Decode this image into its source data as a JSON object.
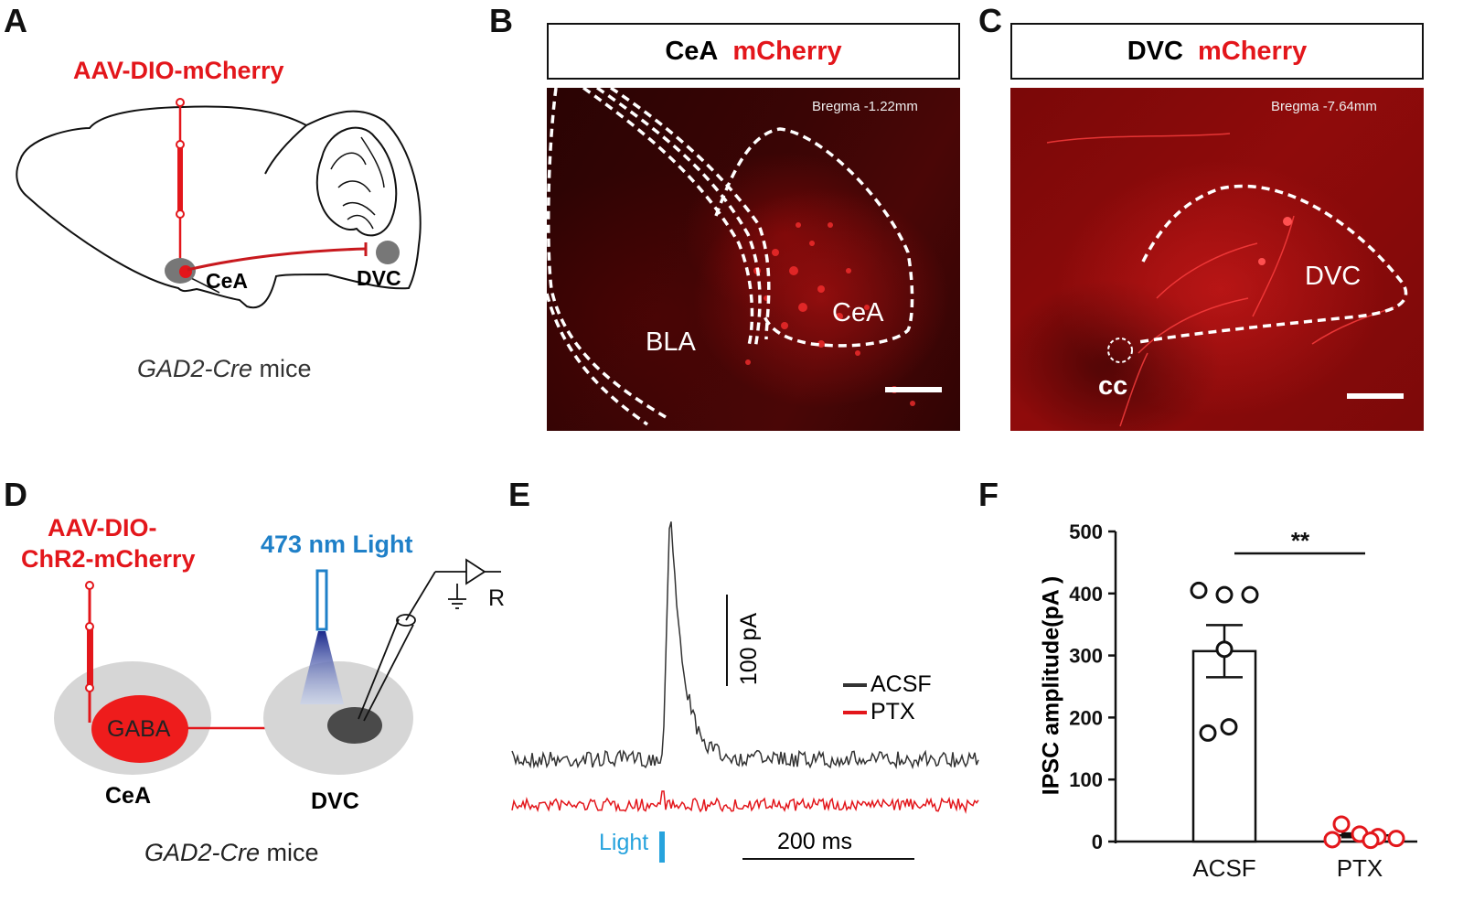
{
  "panels": {
    "A": {
      "label": "A",
      "virus": "AAV-DIO-mCherry",
      "region_source": "CeA",
      "region_target": "DVC",
      "mouse_line": "GAD2-Cre",
      "mouse_suffix": "mice"
    },
    "B": {
      "label": "B",
      "header_region": "CeA",
      "header_marker": "mCherry",
      "bregma": "Bregma  -1.22mm",
      "region_bla": "BLA",
      "region_cea": "CeA"
    },
    "C": {
      "label": "C",
      "header_region": "DVC",
      "header_marker": "mCherry",
      "bregma": "Bregma  -7.64mm",
      "region_dvc": "DVC",
      "region_cc": "cc"
    },
    "D": {
      "label": "D",
      "virus_line1": "AAV-DIO-",
      "virus_line2": "ChR2-mCherry",
      "light": "473 nm Light",
      "recording": "R",
      "cell": "GABA",
      "region_source": "CeA",
      "region_target": "DVC",
      "mouse_line": "GAD2-Cre",
      "mouse_suffix": "mice"
    },
    "E": {
      "label": "E",
      "scale_y": "100 pA",
      "scale_x": "200 ms",
      "legend_acsf": "ACSF",
      "legend_ptx": "PTX",
      "light": "Light"
    }
  },
  "colors": {
    "red": "#e3161b",
    "blue": "#1f80c8",
    "trace_acsf": "#333333",
    "trace_ptx": "#e3161b",
    "light_bar": "#27a3dd"
  },
  "chart_data": {
    "type": "bar",
    "panel_label": "F",
    "title": "",
    "ylabel": "IPSC amplitude(pA )",
    "xlabel": "",
    "categories": [
      "ACSF",
      "PTX"
    ],
    "values": [
      307,
      10
    ],
    "errors": [
      42,
      3
    ],
    "ylim": [
      0,
      500
    ],
    "yticks": [
      0,
      100,
      200,
      300,
      400,
      500
    ],
    "ytick_labels": [
      "0",
      "100",
      "200",
      "300",
      "400",
      "500"
    ],
    "points": [
      {
        "name": "ACSF",
        "values": [
          405,
          398,
          398,
          310,
          185,
          175
        ]
      },
      {
        "name": "PTX",
        "values": [
          28,
          12,
          8,
          5,
          3,
          2
        ]
      }
    ],
    "significance": "**"
  }
}
